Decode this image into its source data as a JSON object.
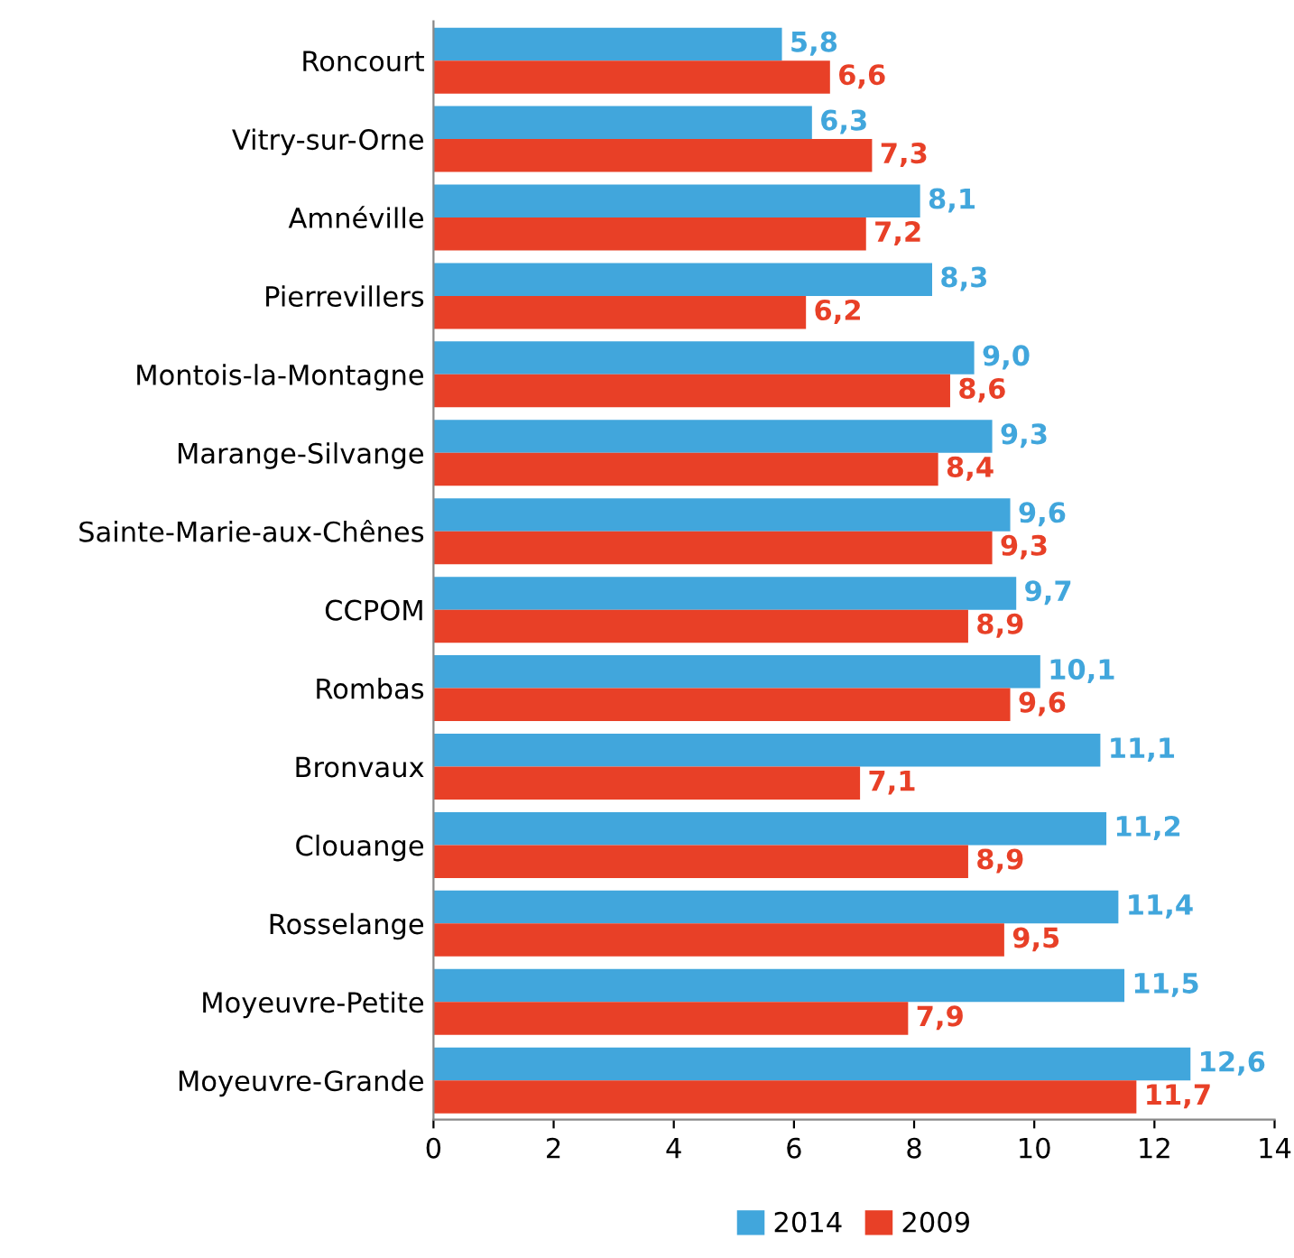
{
  "chart_data": {
    "type": "bar",
    "orientation": "horizontal",
    "categories": [
      "Roncourt",
      "Vitry-sur-Orne",
      "Amnéville",
      "Pierrevillers",
      "Montois-la-Montagne",
      "Marange-Silvange",
      "Sainte-Marie-aux-Chênes",
      "CCPOM",
      "Rombas",
      "Bronvaux",
      "Clouange",
      "Rosselange",
      "Moyeuvre-Petite",
      "Moyeuvre-Grande"
    ],
    "series": [
      {
        "name": "2014",
        "color": "#41a6dc",
        "values": [
          5.8,
          6.3,
          8.1,
          8.3,
          9.0,
          9.3,
          9.6,
          9.7,
          10.1,
          11.1,
          11.2,
          11.4,
          11.5,
          12.6
        ],
        "value_labels": [
          "5,8",
          "6,3",
          "8,1",
          "8,3",
          "9,0",
          "9,3",
          "9,6",
          "9,7",
          "10,1",
          "11,1",
          "11,2",
          "11,4",
          "11,5",
          "12,6"
        ]
      },
      {
        "name": "2009",
        "color": "#e84027",
        "values": [
          6.6,
          7.3,
          7.2,
          6.2,
          8.6,
          8.4,
          9.3,
          8.9,
          9.6,
          7.1,
          8.9,
          9.5,
          7.9,
          11.7
        ],
        "value_labels": [
          "6,6",
          "7,3",
          "7,2",
          "6,2",
          "8,6",
          "8,4",
          "9,3",
          "8,9",
          "9,6",
          "7,1",
          "8,9",
          "9,5",
          "7,9",
          "11,7"
        ]
      }
    ],
    "xlim": [
      0,
      14
    ],
    "xticks": [
      0,
      2,
      4,
      6,
      8,
      10,
      12,
      14
    ],
    "grid": false,
    "legend": "bottom"
  }
}
